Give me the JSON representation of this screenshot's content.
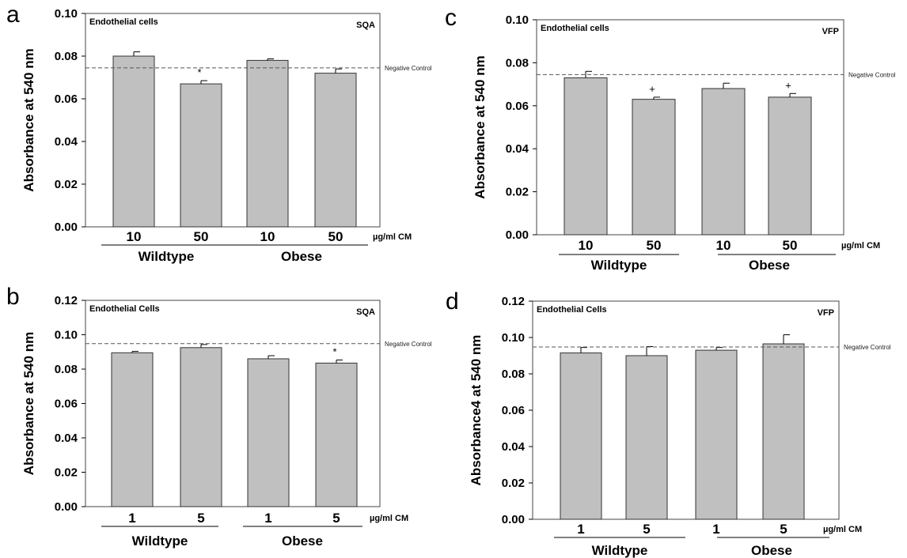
{
  "chart_data": [
    {
      "panel": "a",
      "type": "bar",
      "inset_left": "Endothelial cells",
      "inset_right": "SQA",
      "ylabel": "Absorbance at 540 nm",
      "ylim": [
        0,
        0.1
      ],
      "yticks": [
        "0.00",
        "0.02",
        "0.04",
        "0.06",
        "0.08",
        "0.10"
      ],
      "categories": [
        "10",
        "50",
        "10",
        "50"
      ],
      "values": [
        0.08,
        0.067,
        0.078,
        0.072
      ],
      "errors": [
        0.002,
        0.0015,
        0.0007,
        0.002
      ],
      "markers": [
        "",
        "*",
        "",
        ""
      ],
      "unit_label": "µg/ml CM",
      "groups": [
        "Wildtype",
        "Obese"
      ],
      "reference_line": {
        "value": 0.0745,
        "label": "Negative Control"
      }
    },
    {
      "panel": "c",
      "type": "bar",
      "inset_left": "Endothelial cells",
      "inset_right": "VFP",
      "ylabel": "Absorbance at 540 nm",
      "ylim": [
        0,
        0.1
      ],
      "yticks": [
        "0.00",
        "0.02",
        "0.04",
        "0.06",
        "0.08",
        "0.10"
      ],
      "categories": [
        "10",
        "50",
        "10",
        "50"
      ],
      "values": [
        0.073,
        0.063,
        0.068,
        0.064
      ],
      "errors": [
        0.003,
        0.001,
        0.0025,
        0.0017
      ],
      "markers": [
        "",
        "+",
        "",
        "+"
      ],
      "unit_label": "µg/ml CM",
      "groups": [
        "Wildtype",
        "Obese"
      ],
      "reference_line": {
        "value": 0.0745,
        "label": "Negative Control"
      }
    },
    {
      "panel": "b",
      "type": "bar",
      "inset_left": "Endothelial Cells",
      "inset_right": "SQA",
      "ylabel": "Absorbance at 540 nm",
      "ylim": [
        0,
        0.12
      ],
      "yticks": [
        "0.00",
        "0.02",
        "0.04",
        "0.06",
        "0.08",
        "0.10",
        "0.12"
      ],
      "categories": [
        "1",
        "5",
        "1",
        "5"
      ],
      "values": [
        0.0895,
        0.0925,
        0.086,
        0.0835
      ],
      "errors": [
        0.0008,
        0.0018,
        0.0018,
        0.0018
      ],
      "markers": [
        "",
        "",
        "",
        "*"
      ],
      "unit_label": "µg/ml CM",
      "groups": [
        "Wildtype",
        "Obese"
      ],
      "reference_line": {
        "value": 0.0948,
        "label": "Negative Control"
      }
    },
    {
      "panel": "d",
      "type": "bar",
      "inset_left": "Endothelial Cells",
      "inset_right": "VFP",
      "ylabel": "Absorbance4 at 540 nm",
      "ylim": [
        0,
        0.12
      ],
      "yticks": [
        "0.00",
        "0.02",
        "0.04",
        "0.06",
        "0.08",
        "0.10",
        "0.12"
      ],
      "categories": [
        "1",
        "5",
        "1",
        "5"
      ],
      "values": [
        0.0915,
        0.09,
        0.093,
        0.0965
      ],
      "errors": [
        0.003,
        0.005,
        0.0015,
        0.005
      ],
      "markers": [
        "",
        "",
        "",
        ""
      ],
      "unit_label": "µg/ml CM",
      "groups": [
        "Wildtype",
        "Obese"
      ],
      "reference_line": {
        "value": 0.0948,
        "label": "Negative Control"
      }
    }
  ],
  "colors": {
    "bar_fill": "#c0c0c0",
    "bar_stroke": "#333333",
    "ref_line": "#555555"
  }
}
